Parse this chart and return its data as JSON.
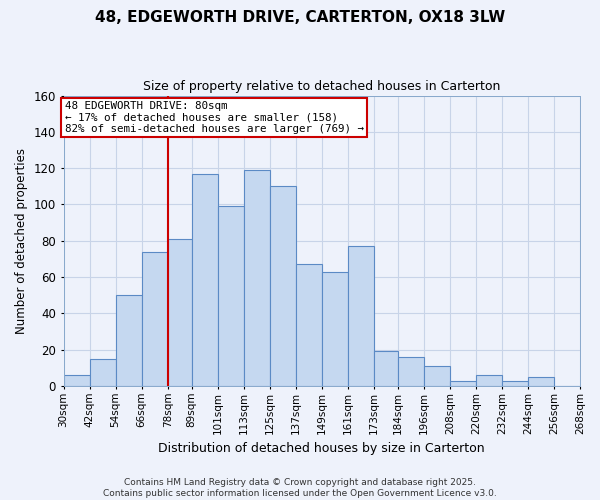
{
  "title": "48, EDGEWORTH DRIVE, CARTERTON, OX18 3LW",
  "subtitle": "Size of property relative to detached houses in Carterton",
  "xlabel": "Distribution of detached houses by size in Carterton",
  "ylabel": "Number of detached properties",
  "bins": [
    30,
    42,
    54,
    66,
    78,
    89,
    101,
    113,
    125,
    137,
    149,
    161,
    173,
    184,
    196,
    208,
    220,
    232,
    244,
    256,
    268
  ],
  "bin_labels": [
    "30sqm",
    "42sqm",
    "54sqm",
    "66sqm",
    "78sqm",
    "89sqm",
    "101sqm",
    "113sqm",
    "125sqm",
    "137sqm",
    "149sqm",
    "161sqm",
    "173sqm",
    "184sqm",
    "196sqm",
    "208sqm",
    "220sqm",
    "232sqm",
    "244sqm",
    "256sqm",
    "268sqm"
  ],
  "values": [
    6,
    15,
    50,
    74,
    81,
    117,
    99,
    119,
    110,
    67,
    63,
    77,
    19,
    16,
    11,
    3,
    6,
    3,
    5,
    0
  ],
  "bar_color": "#c5d8f0",
  "bar_edge_color": "#5b8ac5",
  "grid_color": "#c8d4e8",
  "background_color": "#eef2fb",
  "vline_x": 78,
  "vline_color": "#cc0000",
  "annotation_line1": "48 EDGEWORTH DRIVE: 80sqm",
  "annotation_line2": "← 17% of detached houses are smaller (158)",
  "annotation_line3": "82% of semi-detached houses are larger (769) →",
  "footer_text": "Contains HM Land Registry data © Crown copyright and database right 2025.\nContains public sector information licensed under the Open Government Licence v3.0.",
  "ylim": [
    0,
    160
  ],
  "yticks": [
    0,
    20,
    40,
    60,
    80,
    100,
    120,
    140,
    160
  ]
}
